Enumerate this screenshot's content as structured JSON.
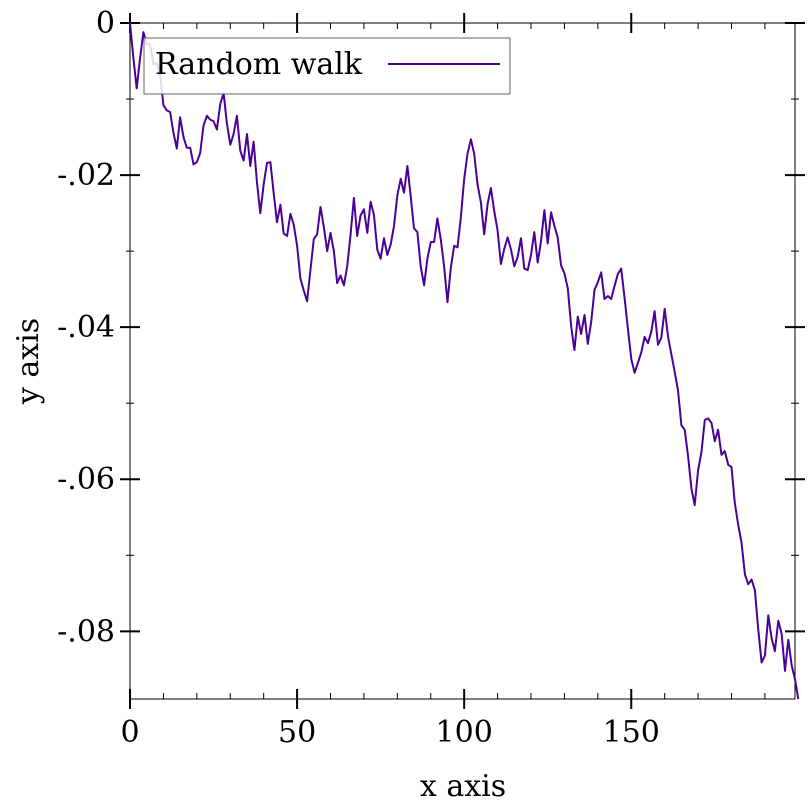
{
  "chart_data": {
    "type": "line",
    "xlabel": "x axis",
    "ylabel": "y axis",
    "xlim": [
      0,
      199
    ],
    "ylim": [
      -0.0889,
      0
    ],
    "grid": false,
    "legend_position": "top-left",
    "x_ticks": [
      {
        "value": 0,
        "label": "0"
      },
      {
        "value": 50,
        "label": "50"
      },
      {
        "value": 100,
        "label": "100"
      },
      {
        "value": 150,
        "label": "150"
      }
    ],
    "y_ticks": [
      {
        "value": 0,
        "label": "0"
      },
      {
        "value": -0.02,
        "label": "-.02"
      },
      {
        "value": -0.04,
        "label": "-.04"
      },
      {
        "value": -0.06,
        "label": "-.06"
      },
      {
        "value": -0.08,
        "label": "-.08"
      }
    ],
    "x_minor_step": 10,
    "y_minor_step": 0.01,
    "series": [
      {
        "name": "Random walk",
        "color": "#4B0096",
        "x_start": 0,
        "x_step": 1,
        "values": [
          0,
          -0.0045,
          -0.0086,
          -0.0047,
          -0.0012,
          -0.0028,
          -0.0028,
          -0.0054,
          -0.0053,
          -0.0067,
          -0.0108,
          -0.0115,
          -0.0117,
          -0.0144,
          -0.0165,
          -0.0124,
          -0.015,
          -0.0164,
          -0.0164,
          -0.0186,
          -0.0183,
          -0.0171,
          -0.0135,
          -0.0122,
          -0.0127,
          -0.0129,
          -0.014,
          -0.0107,
          -0.0092,
          -0.0132,
          -0.016,
          -0.0146,
          -0.0122,
          -0.0168,
          -0.0181,
          -0.0146,
          -0.0188,
          -0.0156,
          -0.021,
          -0.025,
          -0.0212,
          -0.0184,
          -0.0183,
          -0.0224,
          -0.0262,
          -0.0239,
          -0.0277,
          -0.028,
          -0.0251,
          -0.0265,
          -0.0293,
          -0.0336,
          -0.0352,
          -0.0366,
          -0.0324,
          -0.0284,
          -0.0278,
          -0.0242,
          -0.0268,
          -0.03,
          -0.0276,
          -0.0299,
          -0.0342,
          -0.0332,
          -0.0345,
          -0.032,
          -0.0278,
          -0.023,
          -0.028,
          -0.0253,
          -0.0245,
          -0.0276,
          -0.0235,
          -0.0252,
          -0.0298,
          -0.031,
          -0.0283,
          -0.0305,
          -0.0291,
          -0.0267,
          -0.0227,
          -0.0205,
          -0.0223,
          -0.0188,
          -0.0228,
          -0.027,
          -0.0275,
          -0.032,
          -0.0345,
          -0.031,
          -0.0288,
          -0.0288,
          -0.0257,
          -0.0285,
          -0.032,
          -0.0367,
          -0.0322,
          -0.0293,
          -0.0295,
          -0.0256,
          -0.0205,
          -0.0172,
          -0.0153,
          -0.0172,
          -0.0212,
          -0.0236,
          -0.0278,
          -0.0238,
          -0.0217,
          -0.0247,
          -0.0273,
          -0.0317,
          -0.0297,
          -0.0282,
          -0.0298,
          -0.032,
          -0.0308,
          -0.0283,
          -0.0323,
          -0.0325,
          -0.0305,
          -0.0275,
          -0.0315,
          -0.0287,
          -0.0246,
          -0.029,
          -0.0249,
          -0.0267,
          -0.0282,
          -0.0319,
          -0.0329,
          -0.0349,
          -0.0398,
          -0.043,
          -0.0386,
          -0.0409,
          -0.0384,
          -0.0422,
          -0.0393,
          -0.0351,
          -0.0341,
          -0.0328,
          -0.0363,
          -0.0359,
          -0.0363,
          -0.0346,
          -0.033,
          -0.0323,
          -0.0362,
          -0.0402,
          -0.0442,
          -0.046,
          -0.0447,
          -0.0433,
          -0.0413,
          -0.0421,
          -0.0406,
          -0.0379,
          -0.0423,
          -0.0414,
          -0.0376,
          -0.0412,
          -0.0436,
          -0.0459,
          -0.0483,
          -0.0529,
          -0.0535,
          -0.057,
          -0.0612,
          -0.0634,
          -0.0588,
          -0.0565,
          -0.0522,
          -0.052,
          -0.0526,
          -0.055,
          -0.0535,
          -0.0568,
          -0.0563,
          -0.0581,
          -0.0584,
          -0.0631,
          -0.066,
          -0.0683,
          -0.0725,
          -0.0738,
          -0.0732,
          -0.0746,
          -0.0797,
          -0.0841,
          -0.0832,
          -0.0779,
          -0.0809,
          -0.0826,
          -0.0786,
          -0.0803,
          -0.0852,
          -0.0811,
          -0.0845,
          -0.0863,
          -0.0889
        ]
      }
    ]
  }
}
